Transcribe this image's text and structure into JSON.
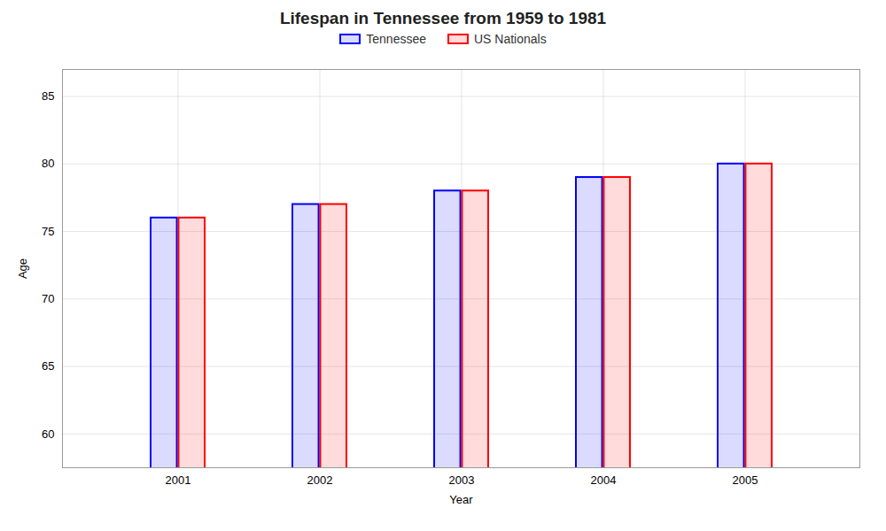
{
  "chart_data": {
    "type": "bar",
    "title": "Lifespan in Tennessee from 1959 to 1981",
    "xlabel": "Year",
    "ylabel": "Age",
    "categories": [
      "2001",
      "2002",
      "2003",
      "2004",
      "2005"
    ],
    "series": [
      {
        "name": "Tennessee",
        "color": "#0000ff",
        "values": [
          76,
          77,
          78,
          79,
          80
        ]
      },
      {
        "name": "US Nationals",
        "color": "#ff0000",
        "values": [
          76,
          77,
          78,
          79,
          80
        ]
      }
    ],
    "ylim": [
      57.5,
      87
    ],
    "yticks": [
      60,
      65,
      70,
      75,
      80,
      85
    ],
    "grid": true,
    "legend": "top"
  }
}
